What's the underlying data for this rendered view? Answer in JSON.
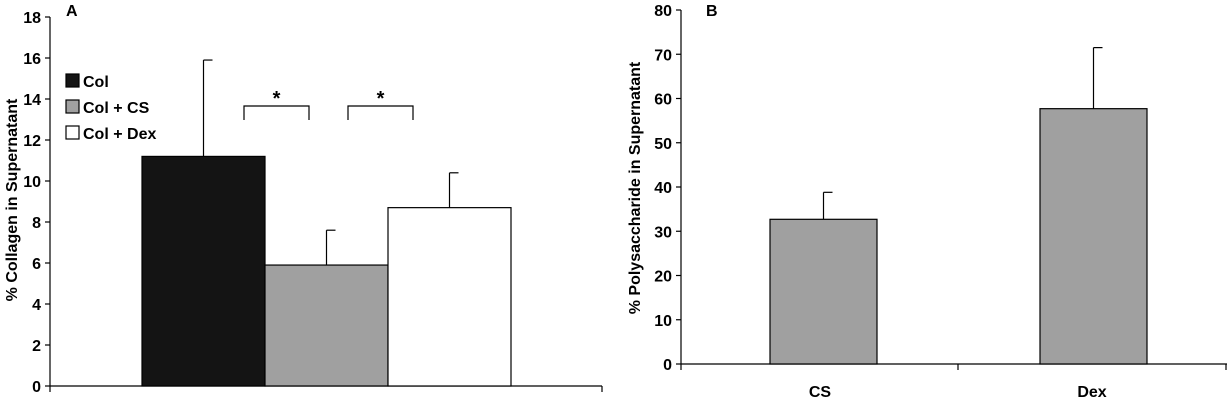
{
  "chart_data": [
    {
      "type": "bar",
      "panel_label": "A",
      "ylabel": "% Collagen in Supernatant",
      "ylim": [
        0,
        18
      ],
      "yticks": [
        0,
        2,
        4,
        6,
        8,
        10,
        12,
        14,
        16,
        18
      ],
      "categories": [
        "Col",
        "Col + CS",
        "Col + Dex"
      ],
      "values": [
        11.2,
        5.9,
        8.7
      ],
      "errors": [
        4.7,
        1.7,
        1.7
      ],
      "colors": [
        "#141414",
        "#a0a0a0",
        "#ffffff"
      ],
      "legend": {
        "position": "top-left",
        "entries": [
          "Col",
          "Col + CS",
          "Col + Dex"
        ]
      },
      "annotations": [
        {
          "text": "*",
          "between": [
            "Col",
            "Col + CS"
          ]
        },
        {
          "text": "*",
          "between": [
            "Col + CS",
            "Col + Dex"
          ]
        }
      ],
      "grid": false
    },
    {
      "type": "bar",
      "panel_label": "B",
      "ylabel": "% Polysaccharide in Supernatant",
      "ylim": [
        0,
        80
      ],
      "yticks": [
        0,
        10,
        20,
        30,
        40,
        50,
        60,
        70,
        80
      ],
      "categories": [
        "CS",
        "Dex"
      ],
      "values": [
        32.7,
        57.7
      ],
      "errors": [
        6.1,
        13.8
      ],
      "colors": [
        "#a0a0a0",
        "#a0a0a0"
      ],
      "grid": false
    }
  ]
}
